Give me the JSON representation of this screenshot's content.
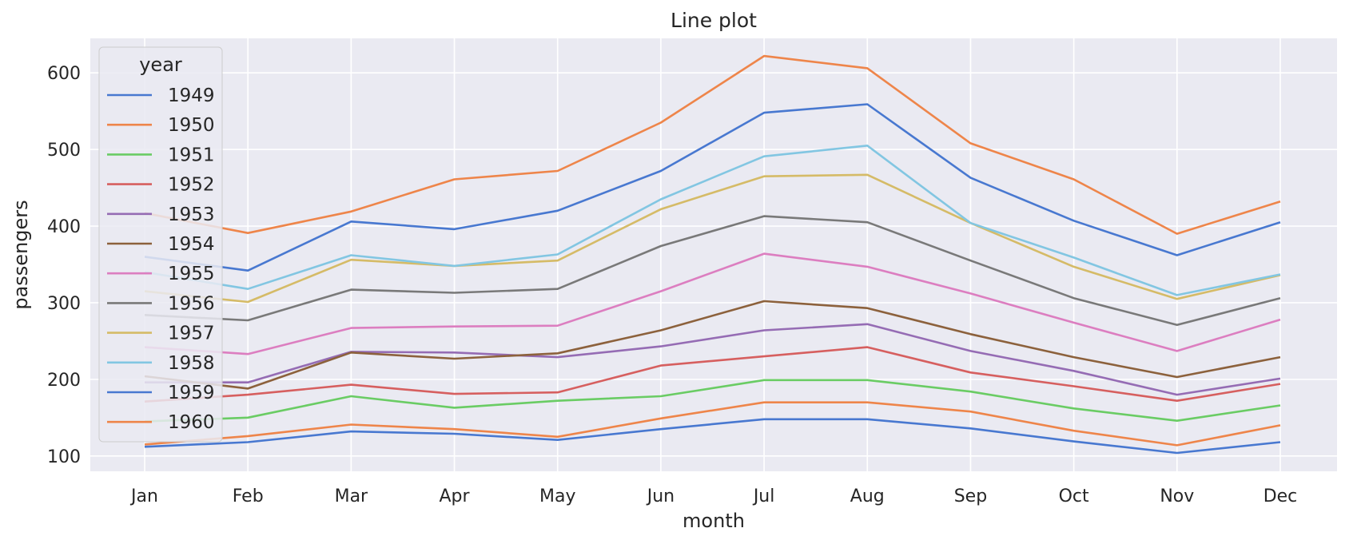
{
  "chart_data": {
    "type": "line",
    "title": "Line plot",
    "xlabel": "month",
    "ylabel": "passengers",
    "categories": [
      "Jan",
      "Feb",
      "Mar",
      "Apr",
      "May",
      "Jun",
      "Jul",
      "Aug",
      "Sep",
      "Oct",
      "Nov",
      "Dec"
    ],
    "ylim": [
      80,
      645
    ],
    "yticks": [
      100,
      200,
      300,
      400,
      500,
      600
    ],
    "grid": true,
    "legend": {
      "title": "year",
      "placement": "top-left"
    },
    "background": "#eaeaf2",
    "series": [
      {
        "name": "1949",
        "color": "#4878d0",
        "values": [
          112,
          118,
          132,
          129,
          121,
          135,
          148,
          148,
          136,
          119,
          104,
          118
        ]
      },
      {
        "name": "1950",
        "color": "#ee854a",
        "values": [
          115,
          126,
          141,
          135,
          125,
          149,
          170,
          170,
          158,
          133,
          114,
          140
        ]
      },
      {
        "name": "1951",
        "color": "#6acc64",
        "values": [
          145,
          150,
          178,
          163,
          172,
          178,
          199,
          199,
          184,
          162,
          146,
          166
        ]
      },
      {
        "name": "1952",
        "color": "#d65f5f",
        "values": [
          171,
          180,
          193,
          181,
          183,
          218,
          230,
          242,
          209,
          191,
          172,
          194
        ]
      },
      {
        "name": "1953",
        "color": "#956cb4",
        "values": [
          196,
          196,
          236,
          235,
          229,
          243,
          264,
          272,
          237,
          211,
          180,
          201
        ]
      },
      {
        "name": "1954",
        "color": "#8c613c",
        "values": [
          204,
          188,
          235,
          227,
          234,
          264,
          302,
          293,
          259,
          229,
          203,
          229
        ]
      },
      {
        "name": "1955",
        "color": "#dc7ec0",
        "values": [
          242,
          233,
          267,
          269,
          270,
          315,
          364,
          347,
          312,
          274,
          237,
          278
        ]
      },
      {
        "name": "1956",
        "color": "#797979",
        "values": [
          284,
          277,
          317,
          313,
          318,
          374,
          413,
          405,
          355,
          306,
          271,
          306
        ]
      },
      {
        "name": "1957",
        "color": "#d5bb67",
        "values": [
          315,
          301,
          356,
          348,
          355,
          422,
          465,
          467,
          404,
          347,
          305,
          336
        ]
      },
      {
        "name": "1958",
        "color": "#82c6e2",
        "values": [
          340,
          318,
          362,
          348,
          363,
          435,
          491,
          505,
          404,
          359,
          310,
          337
        ]
      },
      {
        "name": "1959",
        "color": "#4878d0",
        "values": [
          360,
          342,
          406,
          396,
          420,
          472,
          548,
          559,
          463,
          407,
          362,
          405
        ]
      },
      {
        "name": "1960",
        "color": "#ee854a",
        "values": [
          417,
          391,
          419,
          461,
          472,
          535,
          622,
          606,
          508,
          461,
          390,
          432
        ]
      }
    ]
  }
}
